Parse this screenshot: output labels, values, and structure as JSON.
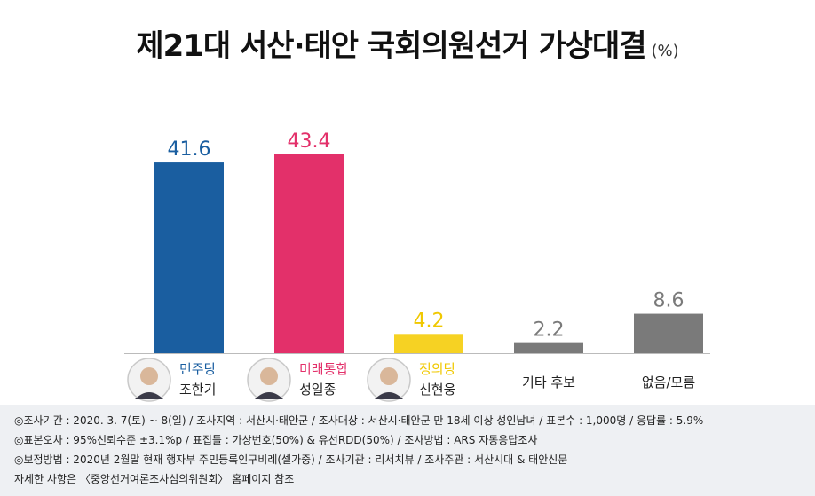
{
  "title": "제21대 서산·태안 국회의원선거 가상대결",
  "unit": "(%)",
  "chart_data": {
    "type": "bar",
    "title": "제21대 서산·태안 국회의원선거 가상대결",
    "ylabel": "(%)",
    "ylim": [
      0,
      48
    ],
    "bars": [
      {
        "party": "민주당",
        "name": "조한기",
        "value": 41.6,
        "color": "#1a5ea0",
        "label_color": "#1a5ea0",
        "party_color": "#1a5ea0",
        "avatar": true
      },
      {
        "party": "미래통합",
        "name": "성일종",
        "value": 43.4,
        "color": "#e3306a",
        "label_color": "#e3306a",
        "party_color": "#e3306a",
        "avatar": true
      },
      {
        "party": "정의당",
        "name": "신현웅",
        "value": 4.2,
        "color": "#f6d223",
        "label_color": "#f0c800",
        "party_color": "#f0c800",
        "avatar": true
      },
      {
        "party": "",
        "name": "기타 후보",
        "value": 2.2,
        "color": "#7a7a7a",
        "label_color": "#7a7a7a",
        "party_color": "#333333",
        "avatar": false
      },
      {
        "party": "",
        "name": "없음/모름",
        "value": 8.6,
        "color": "#7a7a7a",
        "label_color": "#7a7a7a",
        "party_color": "#333333",
        "avatar": false
      }
    ]
  },
  "footer": {
    "lines": [
      "◎조사기간 : 2020. 3. 7(토) ~ 8(일) / 조사지역 : 서산시·태안군 / 조사대상 : 서산시·태안군 만 18세 이상 성인남녀 / 표본수 : 1,000명 / 응답률 : 5.9%",
      "◎표본오차 : 95%신뢰수준 ±3.1%p / 표집틀 : 가상번호(50%) & 유선RDD(50%) / 조사방법 : ARS 자동응답조사",
      "◎보정방법 : 2020년 2월말 현재 행자부 주민등록인구비례(셀가중) / 조사기관 : 리서치뷰 / 조사주관 : 서산시대 & 태안신문",
      "자세한 사항은 〈중앙선거여론조사심의위원회〉 홈페이지 참조"
    ]
  }
}
